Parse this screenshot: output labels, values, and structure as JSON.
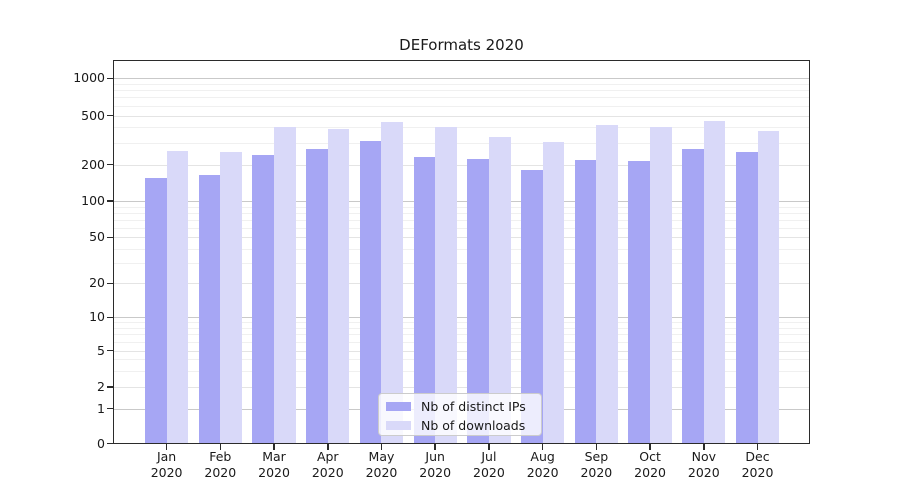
{
  "chart_data": {
    "type": "bar",
    "title": "DEFormats 2020",
    "yscale": "symlog",
    "ylim": [
      0,
      1400
    ],
    "yticks": [
      0,
      1,
      2,
      5,
      10,
      20,
      50,
      100,
      200,
      500,
      1000
    ],
    "grid": "horizontal, with log minor gridlines",
    "legend_location": "lower center",
    "year": "2020",
    "months": [
      "Jan",
      "Feb",
      "Mar",
      "Apr",
      "May",
      "Jun",
      "Jul",
      "Aug",
      "Sep",
      "Oct",
      "Nov",
      "Dec"
    ],
    "categories": [
      "Jan 2020",
      "Feb 2020",
      "Mar 2020",
      "Apr 2020",
      "May 2020",
      "Jun 2020",
      "Jul 2020",
      "Aug 2020",
      "Sep 2020",
      "Oct 2020",
      "Nov 2020",
      "Dec 2020"
    ],
    "series": [
      {
        "name": "Nb of distinct IPs",
        "color": "#a6a6f4",
        "values": [
          155,
          165,
          237,
          266,
          310,
          230,
          220,
          180,
          216,
          213,
          266,
          253
        ]
      },
      {
        "name": "Nb of downloads",
        "color": "#d9d9f9",
        "values": [
          257,
          252,
          404,
          392,
          444,
          404,
          335,
          305,
          417,
          404,
          450,
          373
        ]
      }
    ]
  }
}
